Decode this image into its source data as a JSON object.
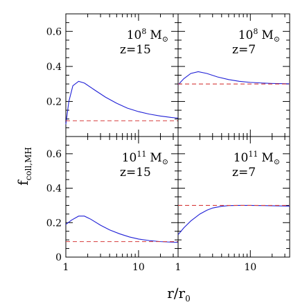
{
  "figure": {
    "ylabel_main": "f",
    "ylabel_sub": "coll,MH",
    "xlabel_main": "r/r",
    "xlabel_sub": "0"
  },
  "colors": {
    "curve": "#1f1fd6",
    "baseline": "#d63a3a",
    "axis": "#000000"
  },
  "chart_data": [
    {
      "type": "line",
      "title": "",
      "annotation": {
        "mass_base": "10",
        "mass_exp": "8",
        "mass_unit": "M",
        "sun_symbol": "⊙",
        "redshift": "z=15"
      },
      "xlabel": "",
      "ylabel": "",
      "xscale": "log",
      "xlim": [
        1,
        35
      ],
      "ylim": [
        0,
        0.7
      ],
      "x_ticklabels": [],
      "y_ticklabels": [
        "0.2",
        "0.4",
        "0.6"
      ],
      "series": [
        {
          "style": "solid",
          "color": "blue",
          "x": [
            1.0,
            1.1,
            1.25,
            1.5,
            1.8,
            2.5,
            3.5,
            5,
            7,
            10,
            14,
            20,
            28,
            35
          ],
          "y": [
            0.07,
            0.2,
            0.29,
            0.315,
            0.305,
            0.265,
            0.225,
            0.19,
            0.162,
            0.142,
            0.128,
            0.117,
            0.109,
            0.105
          ]
        },
        {
          "style": "dashed",
          "color": "red",
          "x": [
            1,
            35
          ],
          "y": [
            0.09,
            0.09
          ]
        }
      ]
    },
    {
      "type": "line",
      "title": "",
      "annotation": {
        "mass_base": "10",
        "mass_exp": "8",
        "mass_unit": "M",
        "sun_symbol": "⊙",
        "redshift": "z=7"
      },
      "xlabel": "",
      "ylabel": "",
      "xscale": "log",
      "xlim": [
        1,
        35
      ],
      "ylim": [
        0,
        0.7
      ],
      "x_ticklabels": [],
      "y_ticklabels": [],
      "series": [
        {
          "style": "solid",
          "color": "blue",
          "x": [
            1.0,
            1.2,
            1.5,
            1.9,
            2.5,
            3.5,
            5,
            7,
            10,
            15,
            20,
            28,
            35
          ],
          "y": [
            0.295,
            0.33,
            0.36,
            0.37,
            0.36,
            0.34,
            0.325,
            0.315,
            0.309,
            0.305,
            0.303,
            0.302,
            0.301
          ]
        },
        {
          "style": "dashed",
          "color": "red",
          "x": [
            1,
            35
          ],
          "y": [
            0.3,
            0.3
          ]
        }
      ]
    },
    {
      "type": "line",
      "title": "",
      "annotation": {
        "mass_base": "10",
        "mass_exp": "11",
        "mass_unit": "M",
        "sun_symbol": "⊙",
        "redshift": "z=15"
      },
      "xlabel": "",
      "ylabel": "",
      "xscale": "log",
      "xlim": [
        1,
        35
      ],
      "ylim": [
        0,
        0.7
      ],
      "x_ticklabels": [
        "1",
        "10"
      ],
      "y_ticklabels": [
        "0",
        "0.2",
        "0.4",
        "0.6"
      ],
      "series": [
        {
          "style": "solid",
          "color": "blue",
          "x": [
            1.0,
            1.2,
            1.5,
            1.8,
            2.2,
            3,
            4,
            5.5,
            7.5,
            10,
            14,
            20,
            28,
            35
          ],
          "y": [
            0.19,
            0.215,
            0.238,
            0.238,
            0.22,
            0.185,
            0.158,
            0.135,
            0.117,
            0.105,
            0.096,
            0.09,
            0.087,
            0.086
          ]
        },
        {
          "style": "dashed",
          "color": "red",
          "x": [
            1,
            35
          ],
          "y": [
            0.09,
            0.09
          ]
        }
      ]
    },
    {
      "type": "line",
      "title": "",
      "annotation": {
        "mass_base": "10",
        "mass_exp": "11",
        "mass_unit": "M",
        "sun_symbol": "⊙",
        "redshift": "z=7"
      },
      "xlabel": "",
      "ylabel": "",
      "xscale": "log",
      "xlim": [
        1,
        35
      ],
      "ylim": [
        0,
        0.7
      ],
      "x_ticklabels": [
        "1",
        "10"
      ],
      "y_ticklabels": [],
      "series": [
        {
          "style": "solid",
          "color": "blue",
          "x": [
            1.0,
            1.2,
            1.5,
            2,
            2.5,
            3,
            4,
            5,
            7,
            10,
            15,
            20,
            28,
            35
          ],
          "y": [
            0.13,
            0.17,
            0.21,
            0.25,
            0.272,
            0.285,
            0.295,
            0.299,
            0.3,
            0.3,
            0.299,
            0.298,
            0.297,
            0.296
          ]
        },
        {
          "style": "dashed",
          "color": "red",
          "x": [
            1,
            35
          ],
          "y": [
            0.3,
            0.3
          ]
        }
      ]
    }
  ]
}
